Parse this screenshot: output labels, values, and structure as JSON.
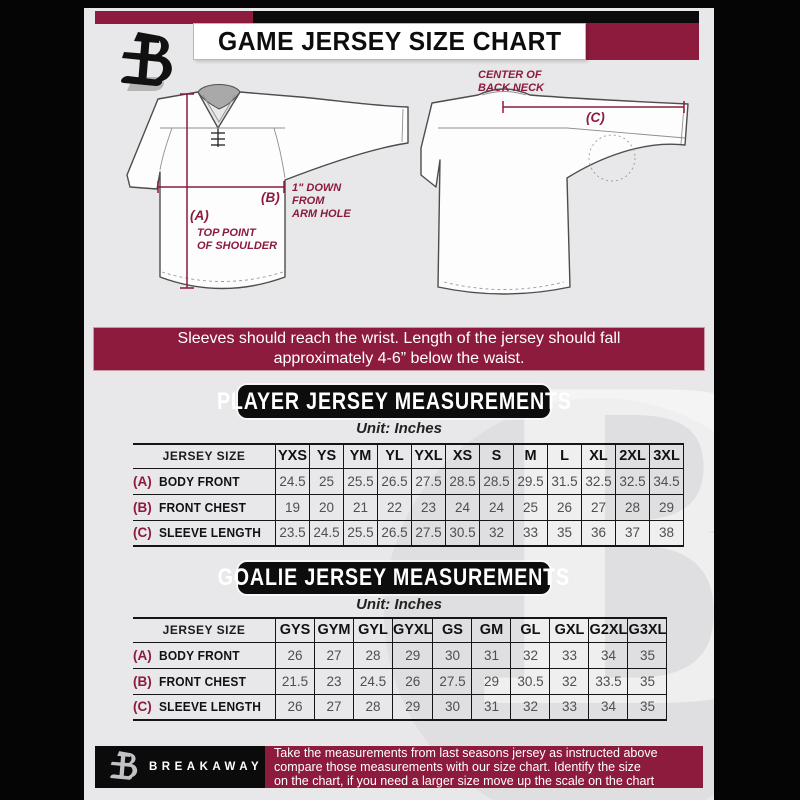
{
  "header": {
    "title": "GAME JERSEY SIZE CHART",
    "brand_letter": "B"
  },
  "colors": {
    "maroon": "#8c1b3d",
    "black": "#0b0b0b",
    "page_bg": "#e8e8ea"
  },
  "diagram": {
    "front": {
      "a_tag": "(A)",
      "a_line1": "TOP POINT",
      "a_line2": "OF SHOULDER",
      "b_tag": "(B)",
      "b_line1": "1\" DOWN",
      "b_line2": "FROM",
      "b_line3": "ARM HOLE"
    },
    "back": {
      "c_tag": "(C)",
      "c_line1": "CENTER OF",
      "c_line2": "BACK NECK"
    }
  },
  "notice": {
    "line1": "Sleeves should reach the wrist. Length of the jersey should fall",
    "line2": "approximately 4-6” below the waist."
  },
  "player_section": {
    "heading": "PLAYER JERSEY MEASUREMENTS",
    "unit": "Unit: Inches",
    "table": {
      "corner": "JERSEY SIZE",
      "sizes": [
        "YXS",
        "YS",
        "YM",
        "YL",
        "YXL",
        "XS",
        "S",
        "M",
        "L",
        "XL",
        "2XL",
        "3XL"
      ],
      "rows": [
        {
          "tag": "(A)",
          "label": "BODY FRONT",
          "values": [
            "24.5",
            "25",
            "25.5",
            "26.5",
            "27.5",
            "28.5",
            "28.5",
            "29.5",
            "31.5",
            "32.5",
            "32.5",
            "34.5"
          ]
        },
        {
          "tag": "(B)",
          "label": "FRONT CHEST",
          "values": [
            "19",
            "20",
            "21",
            "22",
            "23",
            "24",
            "24",
            "25",
            "26",
            "27",
            "28",
            "29"
          ]
        },
        {
          "tag": "(C)",
          "label": "SLEEVE LENGTH",
          "values": [
            "23.5",
            "24.5",
            "25.5",
            "26.5",
            "27.5",
            "30.5",
            "32",
            "33",
            "35",
            "36",
            "37",
            "38"
          ]
        }
      ]
    }
  },
  "goalie_section": {
    "heading": "GOALIE JERSEY MEASUREMENTS",
    "unit": "Unit: Inches",
    "table": {
      "corner": "JERSEY SIZE",
      "sizes": [
        "GYS",
        "GYM",
        "GYL",
        "GYXL",
        "GS",
        "GM",
        "GL",
        "GXL",
        "G2XL",
        "G3XL"
      ],
      "rows": [
        {
          "tag": "(A)",
          "label": "BODY FRONT",
          "values": [
            "26",
            "27",
            "28",
            "29",
            "30",
            "31",
            "32",
            "33",
            "34",
            "35"
          ]
        },
        {
          "tag": "(B)",
          "label": "FRONT CHEST",
          "values": [
            "21.5",
            "23",
            "24.5",
            "26",
            "27.5",
            "29",
            "30.5",
            "32",
            "33.5",
            "35"
          ]
        },
        {
          "tag": "(C)",
          "label": "SLEEVE LENGTH",
          "values": [
            "26",
            "27",
            "28",
            "29",
            "30",
            "31",
            "32",
            "33",
            "34",
            "35"
          ]
        }
      ]
    }
  },
  "footer": {
    "brand": "BREAKAWAY",
    "line1": "Take the measurements from last seasons jersey as instructed above",
    "line2": "compare those measurements  with our size chart. Identify the size",
    "line3": "on the chart, if you need a larger size move up the scale on the chart"
  },
  "watermark_letter": "B"
}
